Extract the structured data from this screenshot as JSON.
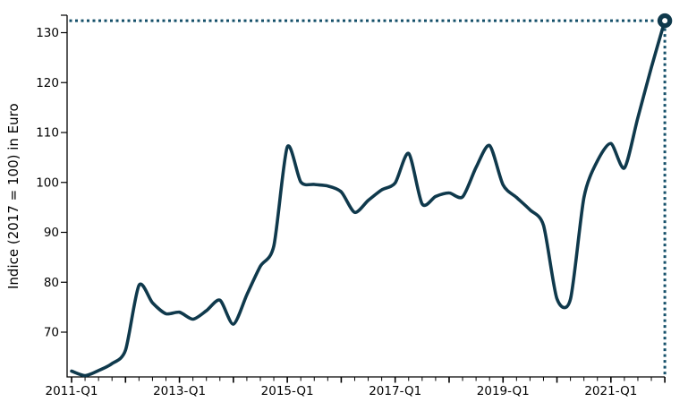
{
  "chart_data": {
    "type": "line",
    "title": "",
    "xlabel": "",
    "ylabel": "Indice (2017 = 100) in Euro",
    "x": [
      "2011-Q1",
      "2011-Q2",
      "2011-Q3",
      "2011-Q4",
      "2012-Q1",
      "2012-Q2",
      "2012-Q3",
      "2012-Q4",
      "2013-Q1",
      "2013-Q2",
      "2013-Q3",
      "2013-Q4",
      "2014-Q1",
      "2014-Q2",
      "2014-Q3",
      "2014-Q4",
      "2015-Q1",
      "2015-Q2",
      "2015-Q3",
      "2015-Q4",
      "2016-Q1",
      "2016-Q2",
      "2016-Q3",
      "2016-Q4",
      "2017-Q1",
      "2017-Q2",
      "2017-Q3",
      "2017-Q4",
      "2018-Q1",
      "2018-Q2",
      "2018-Q3",
      "2018-Q4",
      "2019-Q1",
      "2019-Q2",
      "2019-Q3",
      "2019-Q4",
      "2020-Q1",
      "2020-Q2",
      "2020-Q3",
      "2020-Q4",
      "2021-Q1",
      "2021-Q2",
      "2021-Q3",
      "2021-Q4",
      "2022-Q1"
    ],
    "values": [
      62.2,
      61.3,
      62.3,
      63.7,
      66.4,
      79.4,
      75.9,
      73.7,
      74.0,
      72.6,
      74.3,
      76.4,
      71.6,
      77.5,
      83.2,
      87.3,
      107.1,
      100.1,
      99.6,
      99.3,
      98.1,
      94.0,
      96.4,
      98.5,
      99.9,
      105.8,
      95.7,
      97.2,
      97.9,
      97.1,
      103.0,
      107.4,
      99.5,
      97.0,
      94.5,
      91.4,
      76.7,
      76.6,
      97.0,
      104.3,
      107.8,
      102.9,
      113.0,
      123.0,
      132.4
    ],
    "x_tick_labels": [
      "2011-Q1",
      "2013-Q1",
      "2015-Q1",
      "2017-Q1",
      "2019-Q1",
      "2021-Q1"
    ],
    "x_tick_label_every_n_quarters": 8,
    "year_tick_every_n_quarters": 4,
    "y_ticks": [
      70,
      80,
      90,
      100,
      110,
      120,
      130
    ],
    "ylim": [
      61.0,
      133.5
    ],
    "grid": false,
    "legend_position": "none",
    "last_point": {
      "x": "2022-Q1",
      "value": 132.4,
      "marker": "open-circle",
      "guides": "dotted-horizontal-and-vertical"
    },
    "colors": {
      "line": "#0f394c",
      "guide": "#15506a",
      "marker_ring": "#0f394c",
      "marker_fill": "#ffffff",
      "axis": "#000000",
      "text": "#000000"
    }
  }
}
